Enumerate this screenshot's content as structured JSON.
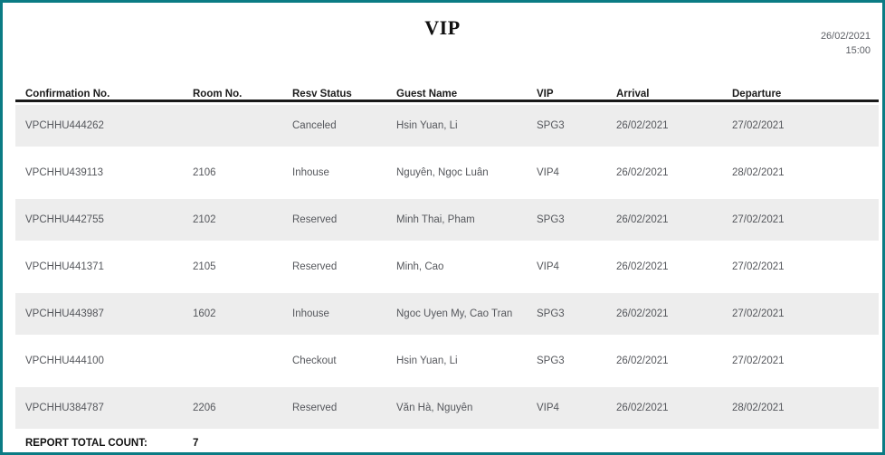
{
  "page": {
    "title": "VIP",
    "generated_date": "26/02/2021",
    "generated_time": "15:00",
    "accent_color": "#0b7b84",
    "stripe_color": "#ededed"
  },
  "table": {
    "columns": [
      "Confirmation No.",
      "Room No.",
      "Resv Status",
      "Guest Name",
      "VIP",
      "Arrival",
      "Departure"
    ],
    "rows": [
      {
        "confirmation_no": "VPCHHU444262",
        "room_no": "",
        "resv_status": "Canceled",
        "guest_name": "Hsin Yuan, Li",
        "vip": "SPG3",
        "arrival": "26/02/2021",
        "departure": "27/02/2021"
      },
      {
        "confirmation_no": "VPCHHU439113",
        "room_no": "2106",
        "resv_status": "Inhouse",
        "guest_name": "Nguyễn, Ngọc Luân",
        "vip": "VIP4",
        "arrival": "26/02/2021",
        "departure": "28/02/2021"
      },
      {
        "confirmation_no": "VPCHHU442755",
        "room_no": "2102",
        "resv_status": "Reserved",
        "guest_name": "Minh Thai, Pham",
        "vip": "SPG3",
        "arrival": "26/02/2021",
        "departure": "27/02/2021"
      },
      {
        "confirmation_no": "VPCHHU441371",
        "room_no": "2105",
        "resv_status": "Reserved",
        "guest_name": "Minh, Cao",
        "vip": "VIP4",
        "arrival": "26/02/2021",
        "departure": "27/02/2021"
      },
      {
        "confirmation_no": "VPCHHU443987",
        "room_no": "1602",
        "resv_status": "Inhouse",
        "guest_name": "Ngoc Uyen My, Cao Tran",
        "vip": "SPG3",
        "arrival": "26/02/2021",
        "departure": "27/02/2021"
      },
      {
        "confirmation_no": "VPCHHU444100",
        "room_no": "",
        "resv_status": "Checkout",
        "guest_name": "Hsin Yuan, Li",
        "vip": "SPG3",
        "arrival": "26/02/2021",
        "departure": "27/02/2021"
      },
      {
        "confirmation_no": "VPCHHU384787",
        "room_no": "2206",
        "resv_status": "Reserved",
        "guest_name": "Văn Hà, Nguyễn",
        "vip": "VIP4",
        "arrival": "26/02/2021",
        "departure": "28/02/2021"
      }
    ]
  },
  "footer": {
    "total_label": "REPORT TOTAL COUNT:",
    "total_value": "7"
  }
}
